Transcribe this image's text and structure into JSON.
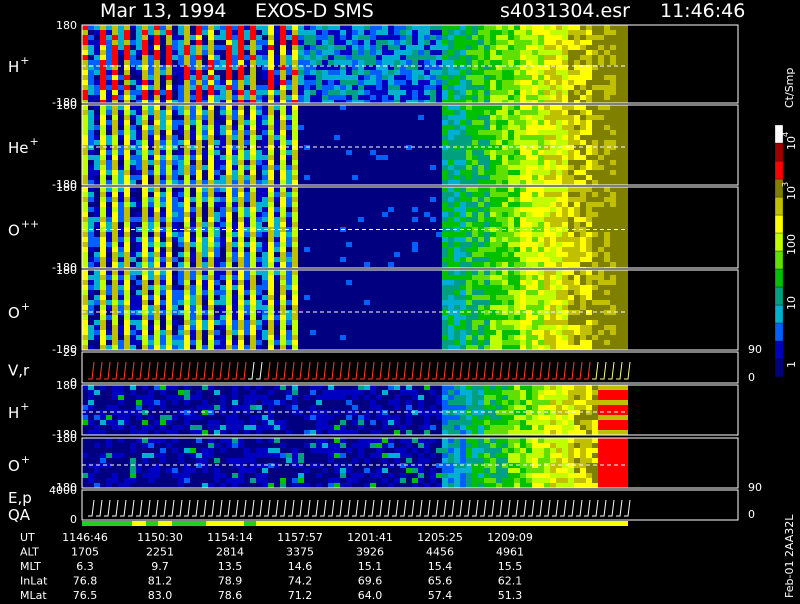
{
  "header": {
    "date": "Mar 13, 1994",
    "instrument": "EXOS-D SMS",
    "file": "s4031304.esr",
    "time": "11:46:46"
  },
  "panels": [
    {
      "label": "H",
      "charge": "+",
      "top": "180",
      "bottom": "-180"
    },
    {
      "label": "He",
      "charge": "+",
      "top": "180",
      "bottom": "-180"
    },
    {
      "label": "O",
      "charge": "++",
      "top": "180",
      "bottom": "-180"
    },
    {
      "label": "O",
      "charge": "+",
      "top": "180",
      "bottom": "-180"
    },
    {
      "label": "V,r",
      "top": "25",
      "bottom": "0",
      "right_top": "90",
      "right_bottom": "0"
    },
    {
      "label": "H",
      "charge": "+",
      "top": "180",
      "bottom": "-180"
    },
    {
      "label": "O",
      "charge": "+",
      "top": "180",
      "bottom": "-180"
    },
    {
      "label": "E,p",
      "label2": "QA",
      "top": "4000",
      "bottom": "0",
      "right_top": "90",
      "right_bottom": "0"
    }
  ],
  "colorbar": {
    "unit": "Ct/Smp",
    "ticks": [
      {
        "base": "10",
        "exp": "4"
      },
      {
        "base": "10",
        "exp": "3"
      },
      "100",
      "10",
      "1"
    ]
  },
  "ephemeris": {
    "rows": [
      {
        "label": "UT",
        "values": [
          "1146:46",
          "1150:30",
          "1154:14",
          "1157:57",
          "1201:41",
          "1205:25",
          "1209:09"
        ]
      },
      {
        "label": "ALT",
        "values": [
          "1705",
          "2251",
          "2814",
          "3375",
          "3926",
          "4456",
          "4961"
        ]
      },
      {
        "label": "MLT",
        "values": [
          "6.3",
          "9.7",
          "13.5",
          "14.6",
          "15.1",
          "15.4",
          "15.5"
        ]
      },
      {
        "label": "InLat",
        "values": [
          "76.8",
          "81.2",
          "78.9",
          "74.2",
          "69.6",
          "65.6",
          "62.1"
        ]
      },
      {
        "label": "MLat",
        "values": [
          "76.5",
          "83.0",
          "78.6",
          "71.2",
          "64.0",
          "57.4",
          "51.3"
        ]
      }
    ]
  },
  "footer": "Feb-01 2AA32L"
}
